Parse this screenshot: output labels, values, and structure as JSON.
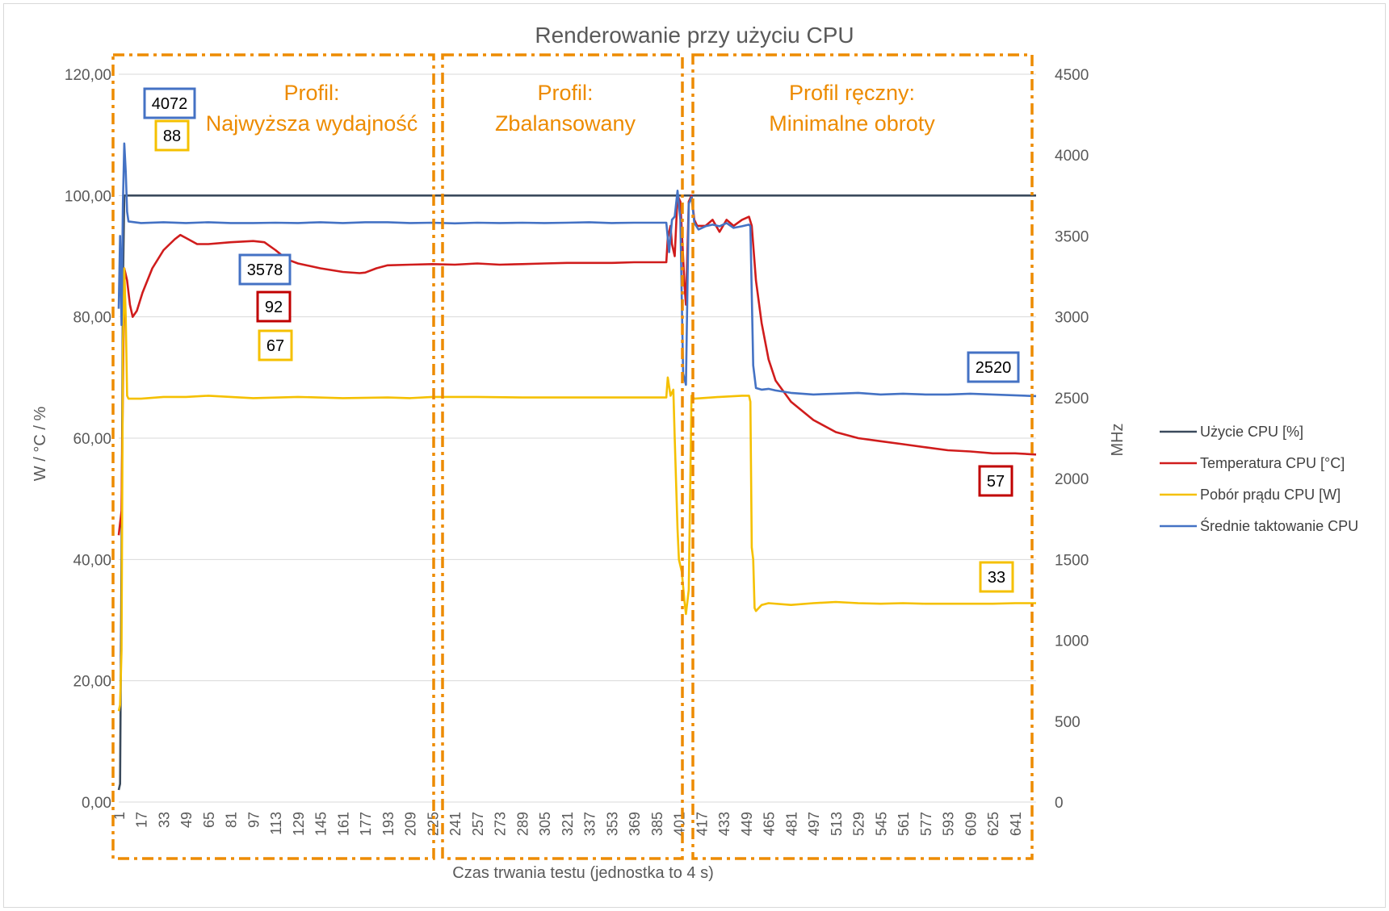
{
  "chart_data": {
    "type": "line",
    "title": "Renderowanie przy użyciu CPU",
    "xlabel": "Czas trwania testu (jednostka to 4 s)",
    "ylabel": "W / °C / %",
    "y2label": "MHz",
    "ylim": [
      0,
      120
    ],
    "y2lim": [
      0,
      4500
    ],
    "xlim": [
      1,
      656
    ],
    "y_ticks": [
      "0,00",
      "20,00",
      "40,00",
      "60,00",
      "80,00",
      "100,00",
      "120,00"
    ],
    "y2_ticks": [
      "0",
      "500",
      "1000",
      "1500",
      "2000",
      "2500",
      "3000",
      "3500",
      "4000",
      "4500"
    ],
    "x_ticks": [
      1,
      17,
      33,
      49,
      65,
      81,
      97,
      113,
      129,
      145,
      161,
      177,
      193,
      209,
      225,
      241,
      257,
      273,
      289,
      305,
      321,
      337,
      353,
      369,
      385,
      401,
      417,
      433,
      449,
      465,
      481,
      497,
      513,
      529,
      545,
      561,
      577,
      593,
      609,
      625,
      641
    ],
    "grid": true,
    "legend_position": "right",
    "series": [
      {
        "name": "Użycie CPU [%]",
        "color": "#3a4a5c",
        "axis": "left",
        "points": [
          [
            1,
            2
          ],
          [
            2,
            3
          ],
          [
            3,
            40
          ],
          [
            4,
            85
          ],
          [
            5,
            100
          ],
          [
            656,
            100
          ]
        ]
      },
      {
        "name": "Temperatura CPU [°C]",
        "color": "#d01c1c",
        "axis": "left",
        "points": [
          [
            1,
            44
          ],
          [
            2,
            46
          ],
          [
            3,
            48
          ],
          [
            5,
            88
          ],
          [
            7,
            86
          ],
          [
            9,
            82
          ],
          [
            11,
            80
          ],
          [
            14,
            81
          ],
          [
            18,
            84
          ],
          [
            25,
            88
          ],
          [
            33,
            91
          ],
          [
            41,
            92.8
          ],
          [
            45,
            93.5
          ],
          [
            49,
            93
          ],
          [
            57,
            92
          ],
          [
            65,
            92
          ],
          [
            81,
            92.3
          ],
          [
            97,
            92.5
          ],
          [
            105,
            92.3
          ],
          [
            113,
            91
          ],
          [
            121,
            89.5
          ],
          [
            129,
            88.8
          ],
          [
            145,
            88
          ],
          [
            161,
            87.4
          ],
          [
            173,
            87.2
          ],
          [
            177,
            87.3
          ],
          [
            185,
            88
          ],
          [
            193,
            88.5
          ],
          [
            209,
            88.6
          ],
          [
            225,
            88.7
          ],
          [
            241,
            88.6
          ],
          [
            257,
            88.8
          ],
          [
            273,
            88.6
          ],
          [
            289,
            88.7
          ],
          [
            305,
            88.8
          ],
          [
            321,
            88.9
          ],
          [
            337,
            88.9
          ],
          [
            353,
            88.9
          ],
          [
            369,
            89
          ],
          [
            385,
            89
          ],
          [
            392,
            89
          ],
          [
            393,
            93
          ],
          [
            395,
            95
          ],
          [
            396,
            92
          ],
          [
            398,
            90
          ],
          [
            400,
            100
          ],
          [
            402,
            99
          ],
          [
            405,
            85
          ],
          [
            406,
            82
          ],
          [
            408,
            99
          ],
          [
            410,
            100
          ],
          [
            412,
            96
          ],
          [
            414,
            95
          ],
          [
            420,
            95
          ],
          [
            425,
            96
          ],
          [
            430,
            94
          ],
          [
            435,
            96
          ],
          [
            440,
            95
          ],
          [
            446,
            96
          ],
          [
            451,
            96.5
          ],
          [
            453,
            95
          ],
          [
            456,
            86
          ],
          [
            460,
            79
          ],
          [
            465,
            73
          ],
          [
            470,
            69.5
          ],
          [
            481,
            66
          ],
          [
            497,
            63
          ],
          [
            513,
            61
          ],
          [
            529,
            60
          ],
          [
            545,
            59.5
          ],
          [
            561,
            59
          ],
          [
            577,
            58.5
          ],
          [
            593,
            58
          ],
          [
            609,
            57.8
          ],
          [
            625,
            57.5
          ],
          [
            641,
            57.5
          ],
          [
            656,
            57.3
          ]
        ]
      },
      {
        "name": "Pobór prądu CPU [W]",
        "color": "#f5c000",
        "axis": "left",
        "points": [
          [
            1,
            15
          ],
          [
            2,
            16
          ],
          [
            3,
            25
          ],
          [
            4,
            75
          ],
          [
            5,
            88
          ],
          [
            6,
            80
          ],
          [
            7,
            67
          ],
          [
            8,
            66.5
          ],
          [
            17,
            66.5
          ],
          [
            33,
            66.8
          ],
          [
            49,
            66.8
          ],
          [
            65,
            67
          ],
          [
            97,
            66.6
          ],
          [
            129,
            66.8
          ],
          [
            161,
            66.6
          ],
          [
            193,
            66.7
          ],
          [
            209,
            66.6
          ],
          [
            225,
            66.8
          ],
          [
            257,
            66.8
          ],
          [
            289,
            66.7
          ],
          [
            321,
            66.7
          ],
          [
            353,
            66.7
          ],
          [
            385,
            66.7
          ],
          [
            392,
            66.7
          ],
          [
            393,
            70
          ],
          [
            395,
            67
          ],
          [
            397,
            68
          ],
          [
            398,
            60
          ],
          [
            400,
            45
          ],
          [
            401,
            40
          ],
          [
            403,
            38
          ],
          [
            405,
            33
          ],
          [
            406,
            31
          ],
          [
            408,
            35
          ],
          [
            410,
            67
          ],
          [
            412,
            66.5
          ],
          [
            430,
            66.8
          ],
          [
            446,
            67
          ],
          [
            451,
            67
          ],
          [
            452,
            66
          ],
          [
            453,
            42
          ],
          [
            454,
            40
          ],
          [
            455,
            32
          ],
          [
            456,
            31.5
          ],
          [
            460,
            32.5
          ],
          [
            465,
            32.8
          ],
          [
            481,
            32.5
          ],
          [
            497,
            32.8
          ],
          [
            513,
            33
          ],
          [
            529,
            32.8
          ],
          [
            545,
            32.7
          ],
          [
            561,
            32.8
          ],
          [
            577,
            32.7
          ],
          [
            593,
            32.7
          ],
          [
            609,
            32.7
          ],
          [
            625,
            32.7
          ],
          [
            641,
            32.8
          ],
          [
            656,
            32.8
          ]
        ]
      },
      {
        "name": "Średnie taktowanie CPU",
        "color": "#4472c4",
        "axis": "right",
        "points": [
          [
            1,
            3050
          ],
          [
            2,
            3500
          ],
          [
            3,
            2950
          ],
          [
            4,
            3700
          ],
          [
            5,
            4072
          ],
          [
            6,
            3900
          ],
          [
            7,
            3650
          ],
          [
            8,
            3590
          ],
          [
            17,
            3580
          ],
          [
            33,
            3585
          ],
          [
            49,
            3580
          ],
          [
            65,
            3585
          ],
          [
            81,
            3580
          ],
          [
            97,
            3580
          ],
          [
            113,
            3582
          ],
          [
            129,
            3580
          ],
          [
            145,
            3585
          ],
          [
            161,
            3580
          ],
          [
            177,
            3585
          ],
          [
            193,
            3585
          ],
          [
            209,
            3580
          ],
          [
            225,
            3582
          ],
          [
            241,
            3578
          ],
          [
            257,
            3582
          ],
          [
            273,
            3580
          ],
          [
            289,
            3582
          ],
          [
            305,
            3580
          ],
          [
            321,
            3582
          ],
          [
            337,
            3585
          ],
          [
            353,
            3580
          ],
          [
            369,
            3582
          ],
          [
            385,
            3582
          ],
          [
            392,
            3582
          ],
          [
            394,
            3400
          ],
          [
            396,
            3600
          ],
          [
            398,
            3620
          ],
          [
            400,
            3780
          ],
          [
            402,
            3600
          ],
          [
            404,
            2650
          ],
          [
            406,
            2580
          ],
          [
            408,
            3700
          ],
          [
            410,
            3740
          ],
          [
            412,
            3580
          ],
          [
            415,
            3540
          ],
          [
            420,
            3560
          ],
          [
            425,
            3570
          ],
          [
            430,
            3560
          ],
          [
            435,
            3580
          ],
          [
            440,
            3550
          ],
          [
            446,
            3560
          ],
          [
            451,
            3570
          ],
          [
            452,
            3560
          ],
          [
            454,
            2700
          ],
          [
            456,
            2560
          ],
          [
            460,
            2550
          ],
          [
            465,
            2555
          ],
          [
            470,
            2545
          ],
          [
            481,
            2530
          ],
          [
            497,
            2520
          ],
          [
            513,
            2525
          ],
          [
            529,
            2530
          ],
          [
            545,
            2520
          ],
          [
            561,
            2525
          ],
          [
            577,
            2520
          ],
          [
            593,
            2520
          ],
          [
            609,
            2525
          ],
          [
            625,
            2520
          ],
          [
            641,
            2515
          ],
          [
            656,
            2510
          ]
        ]
      }
    ],
    "sections": [
      {
        "line1": "Profil:",
        "line2": "Najwyższa wydajność"
      },
      {
        "line1": "Profil:",
        "line2": "Zbalansowany"
      },
      {
        "line1": "Profil ręczny:",
        "line2": "Minimalne obroty"
      }
    ],
    "callouts": [
      {
        "text": "4072",
        "color": "#4472c4"
      },
      {
        "text": "88",
        "color": "#f5c000"
      },
      {
        "text": "3578",
        "color": "#4472c4"
      },
      {
        "text": "92",
        "color": "#c00000"
      },
      {
        "text": "67",
        "color": "#f5c000"
      },
      {
        "text": "2520",
        "color": "#4472c4"
      },
      {
        "text": "57",
        "color": "#c00000"
      },
      {
        "text": "33",
        "color": "#f5c000"
      }
    ],
    "colors": {
      "section_border": "#ed8b00",
      "grid": "#d9d9d9"
    }
  }
}
